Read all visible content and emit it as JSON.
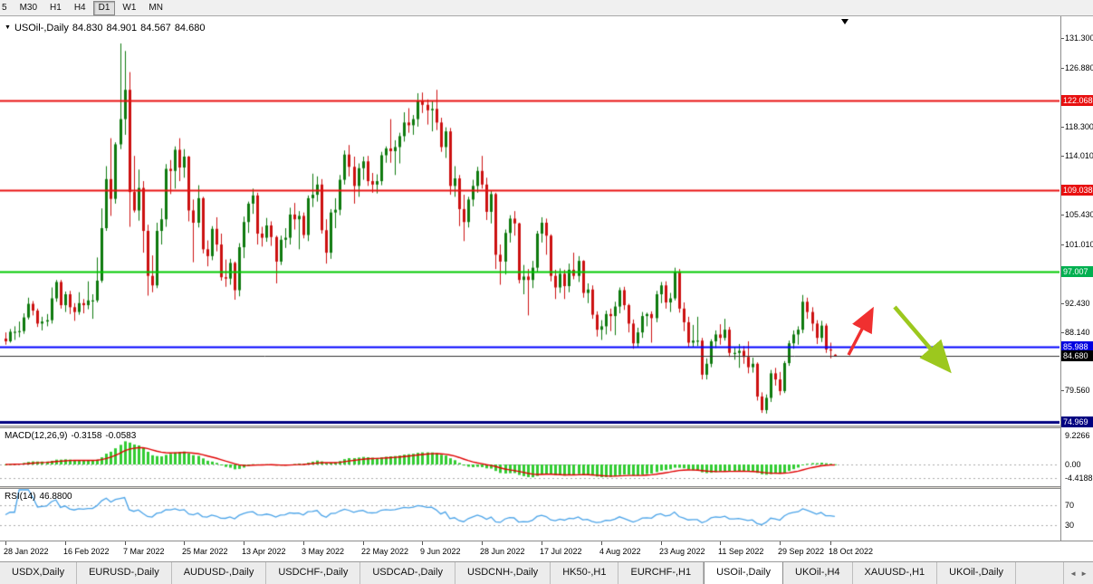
{
  "toolbar": {
    "timeframes": [
      {
        "label": "5",
        "active": false
      },
      {
        "label": "M30",
        "active": false
      },
      {
        "label": "H1",
        "active": false
      },
      {
        "label": "H4",
        "active": false
      },
      {
        "label": "D1",
        "active": true
      },
      {
        "label": "W1",
        "active": false
      },
      {
        "label": "MN",
        "active": false
      }
    ]
  },
  "chart_header": {
    "dropdown_icon": "▼",
    "symbol": "USOil-,Daily",
    "open": "84.830",
    "high": "84.901",
    "low": "84.567",
    "close": "84.680"
  },
  "price_axis": {
    "labels": [
      {
        "text": "131.300",
        "value": 131.3
      },
      {
        "text": "126.880",
        "value": 126.88
      },
      {
        "text": "122.068",
        "value": 122.068,
        "badge": "#e81010"
      },
      {
        "text": "118.300",
        "value": 118.3
      },
      {
        "text": "114.010",
        "value": 114.01
      },
      {
        "text": "109.038",
        "value": 109.038,
        "badge": "#e81010"
      },
      {
        "text": "105.430",
        "value": 105.43
      },
      {
        "text": "101.010",
        "value": 101.01
      },
      {
        "text": "97.007",
        "value": 97.007,
        "badge": "#00b050"
      },
      {
        "text": "92.430",
        "value": 92.43
      },
      {
        "text": "88.140",
        "value": 88.14
      },
      {
        "text": "85.988",
        "value": 85.988,
        "badge": "#0000e0"
      },
      {
        "text": "84.680",
        "value": 84.68,
        "badge": "#000000"
      },
      {
        "text": "79.560",
        "value": 79.56
      },
      {
        "text": "74.969",
        "value": 74.969,
        "badge": "#000080"
      }
    ]
  },
  "hlines": [
    {
      "value": 122.068,
      "color": "#e81010",
      "width": 2
    },
    {
      "value": 109.038,
      "color": "#e81010",
      "width": 2
    },
    {
      "value": 97.007,
      "color": "#00c800",
      "width": 2
    },
    {
      "value": 85.988,
      "color": "#0000ff",
      "width": 2
    },
    {
      "value": 84.68,
      "color": "#303030",
      "width": 1
    },
    {
      "value": 74.969,
      "color": "#000080",
      "width": 3
    }
  ],
  "macd_panel": {
    "label": "MACD(12,26,9)",
    "main_value": "-0.3158",
    "signal_value": "-0.0583",
    "axis_labels": [
      "9.2266",
      "0.00",
      "-4.4188"
    ]
  },
  "rsi_panel": {
    "label": "RSI(14)",
    "value": "46.8800",
    "axis_labels": [
      "70",
      "30"
    ]
  },
  "time_axis": {
    "labels": [
      {
        "index": 0,
        "text": "28 Jan 2022"
      },
      {
        "index": 13,
        "text": "16 Feb 2022"
      },
      {
        "index": 26,
        "text": "7 Mar 2022"
      },
      {
        "index": 39,
        "text": "25 Mar 2022"
      },
      {
        "index": 52,
        "text": "13 Apr 2022"
      },
      {
        "index": 65,
        "text": "3 May 2022"
      },
      {
        "index": 78,
        "text": "22 May 2022"
      },
      {
        "index": 91,
        "text": "9 Jun 2022"
      },
      {
        "index": 104,
        "text": "28 Jun 2022"
      },
      {
        "index": 117,
        "text": "17 Jul 2022"
      },
      {
        "index": 130,
        "text": "4 Aug 2022"
      },
      {
        "index": 143,
        "text": "23 Aug 2022"
      },
      {
        "index": 156,
        "text": "11 Sep 2022"
      },
      {
        "index": 169,
        "text": "29 Sep 2022"
      },
      {
        "index": 180,
        "text": "18 Oct 2022"
      }
    ]
  },
  "tabs": [
    {
      "label": "USDX,Daily",
      "active": false
    },
    {
      "label": "EURUSD-,Daily",
      "active": false
    },
    {
      "label": "AUDUSD-,Daily",
      "active": false
    },
    {
      "label": "USDCHF-,Daily",
      "active": false
    },
    {
      "label": "USDCAD-,Daily",
      "active": false
    },
    {
      "label": "USDCNH-,Daily",
      "active": false
    },
    {
      "label": "HK50-,H1",
      "active": false
    },
    {
      "label": "EURCHF-,H1",
      "active": false
    },
    {
      "label": "USOil-,Daily",
      "active": true
    },
    {
      "label": "UKOil-,H4",
      "active": false
    },
    {
      "label": "XAUUSD-,H1",
      "active": false
    },
    {
      "label": "UKOil-,Daily",
      "active": false
    }
  ],
  "tab_scroll": {
    "left_icon": "◄",
    "right_icon": "►"
  },
  "annotations": [
    {
      "type": "arrow",
      "direction": "up-right",
      "color": "#f03030"
    },
    {
      "type": "arrow",
      "direction": "down-right",
      "color": "#9cc81e"
    }
  ],
  "chart_data": {
    "type": "candlestick",
    "symbol": "USOil-,Daily",
    "timeframe": "Daily",
    "price_range": [
      74.4,
      133.0
    ],
    "up_color": "#0e7a0e",
    "down_color": "#cc1010",
    "indicators": [
      {
        "name": "MACD",
        "params": [
          12,
          26,
          9
        ],
        "current": [
          -0.3158,
          -0.0583
        ],
        "axis_max": 9.2266,
        "axis_min": -4.4188
      },
      {
        "name": "RSI",
        "params": [
          14
        ],
        "current": 46.88,
        "levels": [
          70,
          30
        ]
      }
    ],
    "horizontal_levels": [
      122.068,
      109.038,
      97.007,
      85.988,
      84.68,
      74.969
    ],
    "candles": [
      [
        87.2,
        88.1,
        86.3,
        86.8
      ],
      [
        86.8,
        88.6,
        86.6,
        88.2
      ],
      [
        88.2,
        89,
        87,
        88.2
      ],
      [
        88.2,
        89.7,
        87.4,
        88.3
      ],
      [
        88.3,
        90.9,
        87.9,
        90.3
      ],
      [
        90.3,
        93.2,
        90,
        92.3
      ],
      [
        92.3,
        92.7,
        90.6,
        91.3
      ],
      [
        91.3,
        91.6,
        88.9,
        89.4
      ],
      [
        89.4,
        90.4,
        88.4,
        89.7
      ],
      [
        89.7,
        90.8,
        89,
        89.9
      ],
      [
        89.9,
        94.7,
        89.4,
        93.1
      ],
      [
        93.1,
        95.8,
        92.6,
        95.5
      ],
      [
        95.5,
        95.8,
        91.6,
        92.1
      ],
      [
        92.1,
        94.1,
        91.1,
        93.7
      ],
      [
        93.7,
        94.2,
        90.8,
        91.8
      ],
      [
        91.8,
        92.4,
        89.8,
        91.1
      ],
      [
        91.1,
        94,
        90.7,
        92.4
      ],
      [
        92.4,
        93,
        90.9,
        92.1
      ],
      [
        92.1,
        95.6,
        91.5,
        92.8
      ],
      [
        92.8,
        93.7,
        90.1,
        92.8
      ],
      [
        92.8,
        99.1,
        92.5,
        95.7
      ],
      [
        95.7,
        106.3,
        95.4,
        103.4
      ],
      [
        103.4,
        112.5,
        103,
        110.6
      ],
      [
        110.6,
        116.6,
        105.2,
        107.7
      ],
      [
        107.7,
        116,
        107,
        115.7
      ],
      [
        115.7,
        130.5,
        115,
        119.4
      ],
      [
        119.4,
        129.4,
        117.1,
        123.7
      ],
      [
        123.7,
        126.3,
        103.6,
        108.7
      ],
      [
        108.7,
        114,
        105.7,
        106
      ],
      [
        106,
        112,
        104.5,
        109.3
      ],
      [
        109.3,
        110.3,
        99.8,
        103
      ],
      [
        103,
        103.9,
        93.5,
        96.4
      ],
      [
        96.4,
        99.4,
        94,
        95
      ],
      [
        95,
        104.2,
        94.6,
        103
      ],
      [
        103,
        106.3,
        101,
        104.7
      ],
      [
        104.7,
        112.8,
        103.6,
        112.1
      ],
      [
        112.1,
        113.4,
        108.4,
        111.8
      ],
      [
        111.8,
        115.4,
        109.2,
        114.9
      ],
      [
        114.9,
        116.6,
        110.3,
        112.3
      ],
      [
        112.3,
        115,
        110.8,
        113.9
      ],
      [
        113.9,
        114,
        104.4,
        106
      ],
      [
        106,
        107.6,
        98.4,
        104.2
      ],
      [
        104.2,
        109.7,
        103.5,
        107.8
      ],
      [
        107.8,
        108,
        99.7,
        100.3
      ],
      [
        100.3,
        101.6,
        97.8,
        99.3
      ],
      [
        99.3,
        103.7,
        98.7,
        103.3
      ],
      [
        103.3,
        105,
        100,
        101
      ],
      [
        101,
        102.6,
        95.7,
        96.2
      ],
      [
        96.2,
        98.8,
        94.8,
        96
      ],
      [
        96,
        98.9,
        95.1,
        98.3
      ],
      [
        98.3,
        98.5,
        92.9,
        94.3
      ],
      [
        94.3,
        101.2,
        93.4,
        100.6
      ],
      [
        100.6,
        105.1,
        99,
        104.3
      ],
      [
        104.3,
        107.3,
        102.7,
        107
      ],
      [
        107,
        109.2,
        105.5,
        108.2
      ],
      [
        108.2,
        108.6,
        101,
        102.6
      ],
      [
        102.6,
        103.6,
        100.7,
        102
      ],
      [
        102,
        104.9,
        101.4,
        103.8
      ],
      [
        103.8,
        104.4,
        100.8,
        102.1
      ],
      [
        102.1,
        102.3,
        95.3,
        98.5
      ],
      [
        98.5,
        102.3,
        98,
        101.7
      ],
      [
        101.7,
        103.4,
        100.5,
        102
      ],
      [
        102,
        106.4,
        101,
        105.4
      ],
      [
        105.4,
        107.1,
        103.2,
        104.7
      ],
      [
        104.7,
        105.9,
        100.3,
        105.2
      ],
      [
        105.2,
        105.7,
        101.9,
        102.4
      ],
      [
        102.4,
        108.2,
        101.5,
        107.8
      ],
      [
        107.8,
        111.4,
        106.5,
        108.3
      ],
      [
        108.3,
        111,
        107.3,
        109.8
      ],
      [
        109.8,
        110.6,
        102.6,
        103.1
      ],
      [
        103.1,
        104.7,
        98.2,
        99.8
      ],
      [
        99.8,
        106.2,
        98.9,
        105.7
      ],
      [
        105.7,
        107.8,
        103.4,
        106.1
      ],
      [
        106.1,
        111.2,
        105.3,
        110.5
      ],
      [
        110.5,
        114.8,
        109.8,
        114.2
      ],
      [
        114.2,
        115.6,
        111,
        112.4
      ],
      [
        112.4,
        113.9,
        107,
        109.6
      ],
      [
        109.6,
        112.9,
        108,
        112.2
      ],
      [
        112.2,
        113.9,
        110.5,
        113.2
      ],
      [
        113.2,
        114,
        109.6,
        110.3
      ],
      [
        110.3,
        111.5,
        108.6,
        109.8
      ],
      [
        109.8,
        111.3,
        108.5,
        110.3
      ],
      [
        110.3,
        114.6,
        109.7,
        114.1
      ],
      [
        114.1,
        115.4,
        113,
        115.1
      ],
      [
        115.1,
        119.4,
        113,
        114.7
      ],
      [
        114.7,
        116.3,
        111.2,
        115.3
      ],
      [
        115.3,
        117.4,
        112.9,
        116.9
      ],
      [
        116.9,
        120.4,
        116.1,
        118.9
      ],
      [
        118.9,
        121,
        117.4,
        118.5
      ],
      [
        118.5,
        120,
        117.1,
        119.4
      ],
      [
        119.4,
        123.2,
        118.3,
        122.1
      ],
      [
        122.1,
        123.3,
        120.3,
        121.5
      ],
      [
        121.5,
        122.3,
        118.6,
        120.7
      ],
      [
        120.7,
        122,
        117.6,
        120.9
      ],
      [
        120.9,
        123.7,
        117.8,
        118.9
      ],
      [
        118.9,
        119.6,
        114.6,
        115.3
      ],
      [
        115.3,
        118.2,
        113.7,
        117.6
      ],
      [
        117.6,
        118.1,
        108.3,
        109.6
      ],
      [
        109.6,
        112.5,
        108,
        110.7
      ],
      [
        110.7,
        111.2,
        103.7,
        106.2
      ],
      [
        106.2,
        108.3,
        101.5,
        104.3
      ],
      [
        104.3,
        108,
        103.5,
        107.6
      ],
      [
        107.6,
        110.5,
        106.6,
        109.6
      ],
      [
        109.6,
        112.4,
        108.6,
        111.8
      ],
      [
        111.8,
        114,
        109.2,
        109.8
      ],
      [
        109.8,
        110.8,
        104.6,
        105.8
      ],
      [
        105.8,
        108.9,
        104.1,
        108.4
      ],
      [
        108.4,
        108.6,
        97.4,
        99.5
      ],
      [
        99.5,
        101,
        95.1,
        98.5
      ],
      [
        98.5,
        103.2,
        96.6,
        102.7
      ],
      [
        102.7,
        105.3,
        101.3,
        104.8
      ],
      [
        104.8,
        105.9,
        102.3,
        104.1
      ],
      [
        104.1,
        104.2,
        95.3,
        95.8
      ],
      [
        95.8,
        98,
        93.7,
        96.3
      ],
      [
        96.3,
        97.4,
        90.6,
        95.8
      ],
      [
        95.8,
        98.6,
        94.6,
        97.6
      ],
      [
        97.6,
        103,
        97,
        102.6
      ],
      [
        102.6,
        105,
        101.3,
        104.2
      ],
      [
        104.2,
        104.8,
        99.5,
        102.3
      ],
      [
        102.3,
        102.5,
        95.6,
        96.4
      ],
      [
        96.4,
        97.3,
        93,
        94.7
      ],
      [
        94.7,
        97.5,
        93.9,
        96.7
      ],
      [
        96.7,
        97.3,
        93,
        94.9
      ],
      [
        94.9,
        98.2,
        94,
        97.3
      ],
      [
        97.3,
        99.8,
        95.9,
        96.4
      ],
      [
        96.4,
        99.3,
        95.5,
        98.6
      ],
      [
        98.6,
        98.7,
        93.2,
        93.9
      ],
      [
        93.9,
        95.3,
        92.4,
        94.4
      ],
      [
        94.4,
        95,
        90.1,
        90.7
      ],
      [
        90.7,
        91.2,
        87.5,
        88.5
      ],
      [
        88.5,
        89.9,
        87,
        89
      ],
      [
        89,
        91.3,
        87.8,
        90.8
      ],
      [
        90.8,
        91.6,
        88.3,
        90.5
      ],
      [
        90.5,
        92.6,
        87.7,
        91.9
      ],
      [
        91.9,
        94.7,
        90.9,
        94.3
      ],
      [
        94.3,
        94.8,
        91.4,
        92.1
      ],
      [
        92.1,
        92.3,
        88.1,
        89.4
      ],
      [
        89.4,
        90,
        85.7,
        86.5
      ],
      [
        86.5,
        88.8,
        85.9,
        88.1
      ],
      [
        88.1,
        91.1,
        87.3,
        90.5
      ],
      [
        90.5,
        91,
        89,
        90.8
      ],
      [
        90.8,
        91.2,
        86.6,
        90.2
      ],
      [
        90.2,
        94.2,
        89.6,
        93.7
      ],
      [
        93.7,
        95.5,
        92.4,
        95
      ],
      [
        95,
        95.6,
        91.6,
        92.5
      ],
      [
        92.5,
        93.9,
        91.1,
        93.1
      ],
      [
        93.1,
        97.6,
        92.8,
        97
      ],
      [
        97,
        97.4,
        91,
        91.6
      ],
      [
        91.6,
        92.5,
        88.3,
        89.6
      ],
      [
        89.6,
        90.4,
        86,
        86.6
      ],
      [
        86.6,
        89.2,
        86,
        86.9
      ],
      [
        86.9,
        90.4,
        86.1,
        86.9
      ],
      [
        86.9,
        87.3,
        81.2,
        81.9
      ],
      [
        81.9,
        84.3,
        81.2,
        83.5
      ],
      [
        83.5,
        87.1,
        83,
        86.8
      ],
      [
        86.8,
        88.4,
        85.8,
        87.8
      ],
      [
        87.8,
        89.3,
        86.3,
        87.3
      ],
      [
        87.3,
        90.1,
        86.9,
        88.5
      ],
      [
        88.5,
        88.9,
        84.5,
        85.1
      ],
      [
        85.1,
        86,
        84.1,
        85.1
      ],
      [
        85.1,
        86.4,
        82.9,
        85.4
      ],
      [
        85.4,
        86.1,
        83.5,
        84.5
      ],
      [
        84.5,
        86.8,
        82.1,
        83
      ],
      [
        83,
        84.4,
        82.2,
        83.5
      ],
      [
        83.5,
        83.7,
        78.1,
        78.7
      ],
      [
        78.7,
        79.3,
        76.3,
        76.7
      ],
      [
        76.7,
        79,
        76.2,
        78.5
      ],
      [
        78.5,
        82.6,
        77.9,
        82.1
      ],
      [
        82.1,
        82.9,
        80.3,
        81.2
      ],
      [
        81.2,
        82.3,
        78.9,
        79.5
      ],
      [
        79.5,
        83.9,
        79.2,
        83.6
      ],
      [
        83.6,
        86.9,
        83.2,
        86.5
      ],
      [
        86.5,
        88.4,
        85.7,
        87.8
      ],
      [
        87.8,
        89,
        86.3,
        88.5
      ],
      [
        88.5,
        93.6,
        88,
        92.6
      ],
      [
        92.6,
        93.2,
        90.1,
        91.1
      ],
      [
        91.1,
        91.8,
        88.3,
        89.4
      ],
      [
        89.4,
        89.9,
        86.4,
        87.3
      ],
      [
        87.3,
        89.8,
        86.7,
        89.1
      ],
      [
        89.1,
        89.4,
        85.1,
        85.6
      ],
      [
        85.6,
        86.6,
        84.3,
        85.5
      ],
      [
        84.83,
        84.9,
        84.57,
        84.68
      ]
    ]
  }
}
